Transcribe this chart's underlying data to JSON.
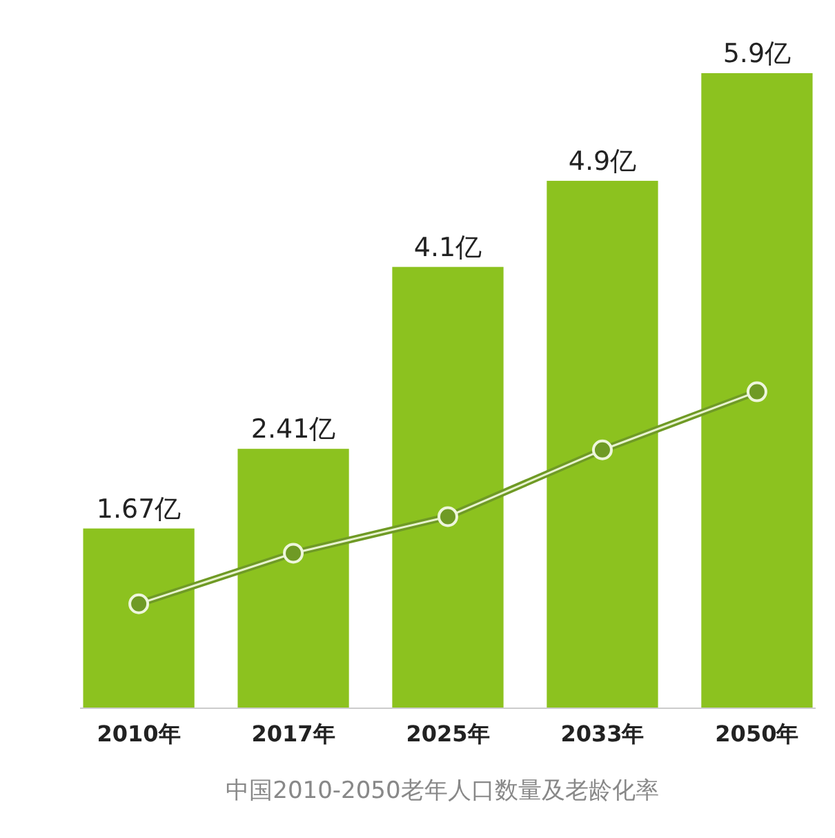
{
  "chart_data": {
    "type": "bar",
    "title": "中国2010-2050老年人口数量及老龄化率",
    "categories": [
      "2010年",
      "2017年",
      "2025年",
      "2033年",
      "2050年"
    ],
    "series": [
      {
        "color": "#8cc21f",
        "values": [
          1.67,
          2.41,
          4.1,
          4.9,
          5.9
        ],
        "value_labels": [
          "1.67亿",
          "2.41亿",
          "4.1亿",
          "4.9亿",
          "5.9亿"
        ]
      },
      {
        "type": "line",
        "color": "#6f9a25",
        "values": [
          0.97,
          1.44,
          1.78,
          2.4,
          2.94
        ],
        "marker": "circle"
      }
    ]
  }
}
